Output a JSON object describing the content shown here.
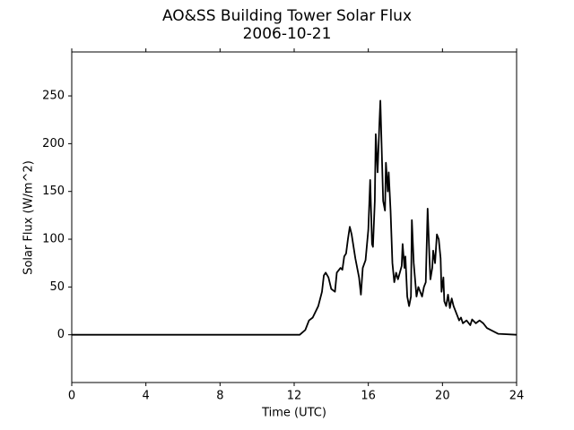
{
  "chart_data": {
    "type": "line",
    "title": "AO&SS Building Tower Solar Flux",
    "subtitle": "2006-10-21",
    "x_label": "Time (UTC)",
    "y_label": "Solar Flux (W/m^2)",
    "color": "#000000",
    "x": [
      0,
      2,
      4,
      6,
      8,
      10,
      12,
      12.3,
      12.6,
      12.8,
      13.0,
      13.3,
      13.5,
      13.6,
      13.7,
      13.85,
      14.0,
      14.2,
      14.3,
      14.5,
      14.6,
      14.7,
      14.8,
      14.9,
      15.0,
      15.1,
      15.3,
      15.5,
      15.6,
      15.7,
      15.85,
      16.0,
      16.1,
      16.2,
      16.25,
      16.35,
      16.4,
      16.5,
      16.6,
      16.65,
      16.7,
      16.8,
      16.9,
      16.95,
      17.05,
      17.1,
      17.2,
      17.3,
      17.4,
      17.5,
      17.6,
      17.7,
      17.8,
      17.85,
      17.95,
      18.0,
      18.1,
      18.2,
      18.3,
      18.35,
      18.45,
      18.6,
      18.7,
      18.8,
      18.9,
      19.0,
      19.1,
      19.2,
      19.3,
      19.35,
      19.45,
      19.5,
      19.6,
      19.7,
      19.8,
      19.9,
      19.95,
      20.05,
      20.1,
      20.2,
      20.3,
      20.4,
      20.5,
      20.6,
      20.8,
      20.9,
      21.0,
      21.1,
      21.3,
      21.5,
      21.6,
      21.8,
      22.0,
      22.2,
      22.4,
      22.6,
      22.8,
      23.0,
      24
    ],
    "values": [
      0,
      0,
      0,
      0,
      0,
      0,
      0,
      0,
      5,
      15,
      18,
      30,
      45,
      62,
      65,
      60,
      48,
      45,
      65,
      70,
      68,
      82,
      85,
      100,
      113,
      105,
      80,
      60,
      42,
      70,
      78,
      110,
      162,
      95,
      92,
      140,
      210,
      170,
      222,
      245,
      210,
      140,
      130,
      180,
      150,
      170,
      130,
      75,
      55,
      65,
      58,
      65,
      72,
      95,
      70,
      82,
      40,
      30,
      40,
      120,
      75,
      40,
      50,
      45,
      40,
      50,
      55,
      132,
      80,
      58,
      70,
      88,
      75,
      105,
      100,
      80,
      45,
      60,
      35,
      30,
      42,
      28,
      38,
      30,
      20,
      15,
      18,
      12,
      15,
      10,
      16,
      12,
      15,
      12,
      7,
      5,
      3,
      1,
      0
    ],
    "xlim": [
      0,
      24
    ],
    "xticks": [
      0,
      4,
      8,
      12,
      16,
      20,
      24
    ],
    "ylim": [
      -50,
      296
    ],
    "yticks": [
      0,
      50,
      100,
      150,
      200,
      250
    ]
  }
}
